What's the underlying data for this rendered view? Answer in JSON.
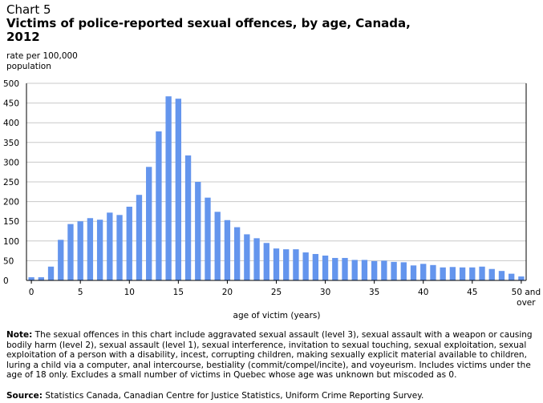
{
  "title": {
    "chart_number": "Chart 5",
    "line1": "Victims of police-reported sexual offences, by age, Canada,",
    "line2": "2012"
  },
  "y_axis_label": {
    "line1": "rate per 100,000",
    "line2": "population"
  },
  "x_axis_label": "age of victim (years)",
  "note": {
    "label": "Note:",
    "text": " The sexual offences in this chart include aggravated sexual assault (level 3), sexual assault with a weapon or causing bodily harm (level 2), sexual assault (level 1), sexual interference, invitation to sexual touching, sexual exploitation, sexual exploitation of a person with a disability, incest, corrupting children, making sexually explicit material available to children, luring a child via a computer, anal intercourse, bestiality (commit/compel/incite), and voyeurism. Includes victims under the age of 18 only. Excludes a small number of victims in Quebec whose age was unknown but miscoded as 0."
  },
  "source": {
    "label": "Source:",
    "text": " Statistics Canada, Canadian Centre for Justice Statistics, Uniform Crime Reporting Survey."
  },
  "colors": {
    "bar": "#6495ED",
    "grid": "#C8C8C8",
    "axis": "#000000"
  },
  "chart_data": {
    "type": "bar",
    "ylim": [
      0,
      500
    ],
    "yticks": [
      0,
      50,
      100,
      150,
      200,
      250,
      300,
      350,
      400,
      450,
      500
    ],
    "xtick_labels": [
      {
        "index": 0,
        "label": "0"
      },
      {
        "index": 5,
        "label": "5"
      },
      {
        "index": 10,
        "label": "10"
      },
      {
        "index": 15,
        "label": "15"
      },
      {
        "index": 20,
        "label": "20"
      },
      {
        "index": 25,
        "label": "25"
      },
      {
        "index": 30,
        "label": "30"
      },
      {
        "index": 35,
        "label": "35"
      },
      {
        "index": 40,
        "label": "40"
      },
      {
        "index": 45,
        "label": "45"
      },
      {
        "index": 50,
        "label": "50 and",
        "label2": "over"
      }
    ],
    "categories": [
      "0",
      "1",
      "2",
      "3",
      "4",
      "5",
      "6",
      "7",
      "8",
      "9",
      "10",
      "11",
      "12",
      "13",
      "14",
      "15",
      "16",
      "17",
      "18",
      "19",
      "20",
      "21",
      "22",
      "23",
      "24",
      "25",
      "26",
      "27",
      "28",
      "29",
      "30",
      "31",
      "32",
      "33",
      "34",
      "35",
      "36",
      "37",
      "38",
      "39",
      "40",
      "41",
      "42",
      "43",
      "44",
      "45",
      "46",
      "47",
      "48",
      "49",
      "50 and over"
    ],
    "values": [
      8,
      8,
      35,
      103,
      143,
      150,
      158,
      154,
      172,
      166,
      187,
      217,
      288,
      378,
      467,
      461,
      317,
      250,
      210,
      174,
      153,
      135,
      117,
      107,
      95,
      81,
      79,
      79,
      71,
      67,
      63,
      57,
      57,
      52,
      52,
      49,
      50,
      47,
      46,
      38,
      42,
      39,
      33,
      34,
      33,
      33,
      35,
      29,
      24,
      17,
      10
    ],
    "grid": true,
    "legend": "none"
  }
}
